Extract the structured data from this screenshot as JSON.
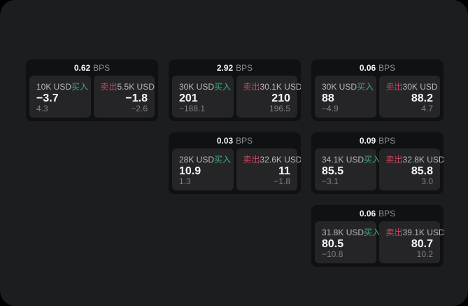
{
  "labels": {
    "bps": "BPS",
    "buy": "买入",
    "sell": "卖出"
  },
  "colors": {
    "page_bg": "#1c1d1f",
    "card_bg": "#101113",
    "panel_bg": "#252528",
    "buy": "#3fab76",
    "sell": "#c9485e"
  },
  "cards": [
    {
      "bps": "0.62",
      "buy": {
        "size": "10K USD",
        "price": "−3.7",
        "sub": "4.3"
      },
      "sell": {
        "size": "5.5K USD",
        "price": "−1.8",
        "sub": "−2.6"
      }
    },
    {
      "bps": "2.92",
      "buy": {
        "size": "30K USD",
        "price": "201",
        "sub": "−188.1"
      },
      "sell": {
        "size": "30.1K USD",
        "price": "210",
        "sub": "196.5"
      }
    },
    {
      "bps": "0.06",
      "buy": {
        "size": "30K USD",
        "price": "88",
        "sub": "−4.9"
      },
      "sell": {
        "size": "30K USD",
        "price": "88.2",
        "sub": "4.7"
      }
    },
    {
      "bps": "0.03",
      "buy": {
        "size": "28K USD",
        "price": "10.9",
        "sub": "1.3"
      },
      "sell": {
        "size": "32.6K USD",
        "price": "11",
        "sub": "−1.8"
      }
    },
    {
      "bps": "0.09",
      "buy": {
        "size": "34.1K USD",
        "price": "85.5",
        "sub": "−3.1"
      },
      "sell": {
        "size": "32.8K USD",
        "price": "85.8",
        "sub": "3.0"
      }
    },
    {
      "bps": "0.06",
      "buy": {
        "size": "31.8K USD",
        "price": "80.5",
        "sub": "−10.8"
      },
      "sell": {
        "size": "39.1K USD",
        "price": "80.7",
        "sub": "10.2"
      }
    }
  ]
}
